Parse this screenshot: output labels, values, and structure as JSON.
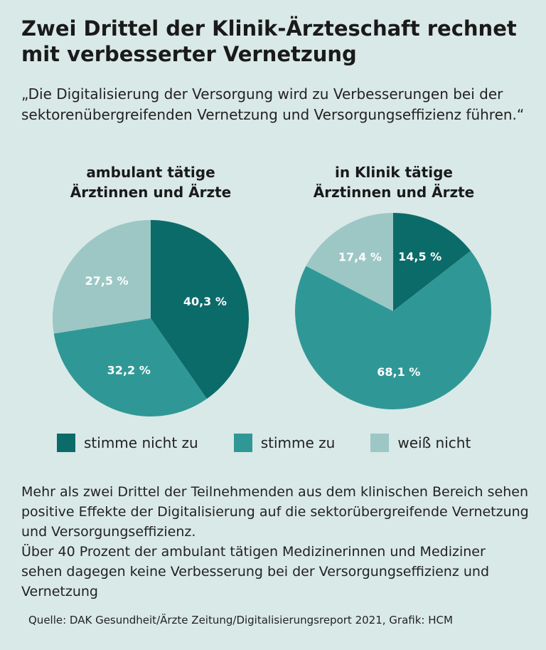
{
  "title": "Zwei Drittel der Klinik-Ärzteschaft rechnet mit verbesserter Vernetzung",
  "quote": "„Die Digitalisierung der Versorgung wird zu Verbesserungen bei der sektorenübergreifenden Vernetzung und Versorgungseffizienz führen.“",
  "colors": {
    "background": "#d9e9e7",
    "stimme_nicht_zu": "#0b6b69",
    "stimme_zu": "#2f9896",
    "weiss_nicht": "#9cc7c5"
  },
  "legend": [
    {
      "label": "stimme nicht zu",
      "color": "#0b6b69"
    },
    {
      "label": "stimme zu",
      "color": "#2f9896"
    },
    {
      "label": "weiß nicht",
      "color": "#9cc7c5"
    }
  ],
  "chart_data": [
    {
      "type": "pie",
      "title": [
        "ambulant tätige",
        "Ärztinnen und Ärzte"
      ],
      "slices": [
        {
          "label": "stimme nicht zu",
          "value": 40.3,
          "display": "40,3 %",
          "color": "#0b6b69"
        },
        {
          "label": "stimme zu",
          "value": 32.2,
          "display": "32,2 %",
          "color": "#2f9896"
        },
        {
          "label": "weiß nicht",
          "value": 27.5,
          "display": "27,5 %",
          "color": "#9cc7c5"
        }
      ]
    },
    {
      "type": "pie",
      "title": [
        "in Klinik tätige",
        "Ärztinnen und Ärzte"
      ],
      "slices": [
        {
          "label": "stimme nicht zu",
          "value": 14.5,
          "display": "14,5 %",
          "color": "#0b6b69"
        },
        {
          "label": "stimme zu",
          "value": 68.1,
          "display": "68,1 %",
          "color": "#2f9896"
        },
        {
          "label": "weiß nicht",
          "value": 17.4,
          "display": "17,4 %",
          "color": "#9cc7c5"
        }
      ]
    }
  ],
  "summary": [
    "Mehr als zwei Drittel der Teilnehmenden aus dem klinischen Bereich sehen positive Effekte der Digitalisierung auf die sektorübergreifende Vernetzung und Versorgungseffizienz.",
    "Über 40 Prozent der ambulant tätigen Medizinerinnen und Mediziner sehen dagegen keine Verbesserung bei der Versorgungseffizienz und Vernetzung"
  ],
  "source": "Quelle:  DAK Gesundheit/Ärzte Zeitung/Digitalisierungsreport 2021, Grafik: HCM"
}
